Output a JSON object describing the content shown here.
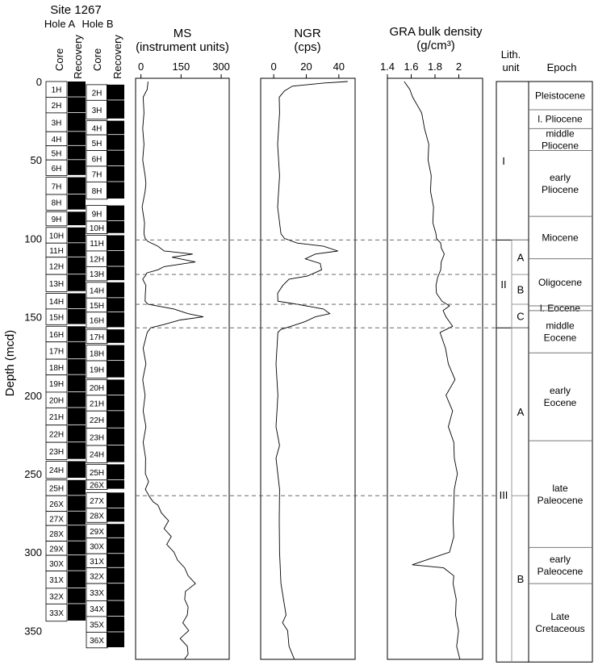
{
  "site_title": "Site 1267",
  "depth_axis": {
    "label": "Depth (mcd)",
    "range": [
      0,
      370
    ],
    "ticks": [
      0,
      50,
      100,
      150,
      200,
      250,
      300,
      350
    ]
  },
  "holes": [
    {
      "name": "Hole A",
      "core_label": "Core",
      "recovery_label": "Recovery",
      "cores": [
        {
          "id": "1H",
          "top": 0,
          "bottom": 10
        },
        {
          "id": "2H",
          "top": 10,
          "bottom": 20
        },
        {
          "id": "3H",
          "top": 20,
          "bottom": 32
        },
        {
          "id": "4H",
          "top": 32,
          "bottom": 41
        },
        {
          "id": "5H",
          "top": 41,
          "bottom": 50
        },
        {
          "id": "6H",
          "top": 50,
          "bottom": 60
        },
        {
          "id": "7H",
          "top": 61,
          "bottom": 72
        },
        {
          "id": "8H",
          "top": 72,
          "bottom": 82
        },
        {
          "id": "9H",
          "top": 83,
          "bottom": 92
        },
        {
          "id": "10H",
          "top": 93,
          "bottom": 103
        },
        {
          "id": "11H",
          "top": 103,
          "bottom": 112
        },
        {
          "id": "12H",
          "top": 112,
          "bottom": 123
        },
        {
          "id": "13H",
          "top": 123,
          "bottom": 134
        },
        {
          "id": "14H",
          "top": 135,
          "bottom": 145
        },
        {
          "id": "15H",
          "top": 145,
          "bottom": 155
        },
        {
          "id": "16H",
          "top": 156,
          "bottom": 166
        },
        {
          "id": "17H",
          "top": 166,
          "bottom": 177
        },
        {
          "id": "18H",
          "top": 177,
          "bottom": 187
        },
        {
          "id": "19H",
          "top": 187,
          "bottom": 198
        },
        {
          "id": "20H",
          "top": 198,
          "bottom": 208
        },
        {
          "id": "21H",
          "top": 208,
          "bottom": 219
        },
        {
          "id": "22H",
          "top": 219,
          "bottom": 230
        },
        {
          "id": "23H",
          "top": 230,
          "bottom": 241
        },
        {
          "id": "24H",
          "top": 242,
          "bottom": 253
        },
        {
          "id": "25H",
          "top": 254,
          "bottom": 264
        },
        {
          "id": "26X",
          "top": 264,
          "bottom": 274
        },
        {
          "id": "27X",
          "top": 274,
          "bottom": 283
        },
        {
          "id": "28X",
          "top": 283,
          "bottom": 293
        },
        {
          "id": "29X",
          "top": 293,
          "bottom": 302
        },
        {
          "id": "30X",
          "top": 302,
          "bottom": 312
        },
        {
          "id": "31X",
          "top": 312,
          "bottom": 323
        },
        {
          "id": "32X",
          "top": 323,
          "bottom": 333
        },
        {
          "id": "33X",
          "top": 333,
          "bottom": 344
        }
      ]
    },
    {
      "name": "Hole B",
      "core_label": "Core",
      "recovery_label": "Recovery",
      "cores": [
        {
          "id": "2H",
          "top": 2,
          "bottom": 12
        },
        {
          "id": "3H",
          "top": 12,
          "bottom": 24
        },
        {
          "id": "4H",
          "top": 25,
          "bottom": 34
        },
        {
          "id": "5H",
          "top": 34,
          "bottom": 44
        },
        {
          "id": "6H",
          "top": 44,
          "bottom": 54
        },
        {
          "id": "7H",
          "top": 54,
          "bottom": 64
        },
        {
          "id": "8H",
          "top": 64,
          "bottom": 75
        },
        {
          "id": "9H",
          "top": 79,
          "bottom": 89
        },
        {
          "id": "10H",
          "top": 89,
          "bottom": 97
        },
        {
          "id": "11H",
          "top": 98,
          "bottom": 108
        },
        {
          "id": "12H",
          "top": 108,
          "bottom": 118
        },
        {
          "id": "13H",
          "top": 118,
          "bottom": 127
        },
        {
          "id": "14H",
          "top": 128,
          "bottom": 138
        },
        {
          "id": "15H",
          "top": 138,
          "bottom": 147
        },
        {
          "id": "16H",
          "top": 147,
          "bottom": 157
        },
        {
          "id": "17H",
          "top": 158,
          "bottom": 167
        },
        {
          "id": "18H",
          "top": 168,
          "bottom": 178
        },
        {
          "id": "19H",
          "top": 178,
          "bottom": 189
        },
        {
          "id": "20H",
          "top": 190,
          "bottom": 200
        },
        {
          "id": "21H",
          "top": 200,
          "bottom": 210
        },
        {
          "id": "22H",
          "top": 210,
          "bottom": 221
        },
        {
          "id": "23H",
          "top": 221,
          "bottom": 232
        },
        {
          "id": "24H",
          "top": 232,
          "bottom": 243
        },
        {
          "id": "25H",
          "top": 244,
          "bottom": 254
        },
        {
          "id": "26X",
          "top": 254,
          "bottom": 260
        },
        {
          "id": "27X",
          "top": 262,
          "bottom": 272
        },
        {
          "id": "28X",
          "top": 272,
          "bottom": 281
        },
        {
          "id": "29X",
          "top": 282,
          "bottom": 291
        },
        {
          "id": "30X",
          "top": 291,
          "bottom": 301
        },
        {
          "id": "31X",
          "top": 301,
          "bottom": 310
        },
        {
          "id": "32X",
          "top": 310,
          "bottom": 320
        },
        {
          "id": "33X",
          "top": 320,
          "bottom": 331
        },
        {
          "id": "34X",
          "top": 331,
          "bottom": 341
        },
        {
          "id": "35X",
          "top": 341,
          "bottom": 351
        },
        {
          "id": "36X",
          "top": 351,
          "bottom": 361
        }
      ]
    }
  ],
  "chart_data": [
    {
      "type": "line",
      "title": "MS",
      "subtitle": "(instrument units)",
      "xlim": [
        -20,
        330
      ],
      "xticks": [
        0,
        150,
        300
      ],
      "depth": [
        0,
        5,
        10,
        20,
        30,
        40,
        50,
        60,
        65,
        70,
        80,
        90,
        97,
        100,
        102,
        105,
        108,
        110,
        112,
        115,
        118,
        120,
        122,
        124,
        126,
        130,
        135,
        140,
        142,
        145,
        148,
        150,
        152,
        155,
        157,
        160,
        170,
        180,
        190,
        200,
        210,
        220,
        230,
        240,
        250,
        255,
        260,
        265,
        268,
        270,
        275,
        280,
        285,
        290,
        295,
        300,
        305,
        310,
        315,
        320,
        325,
        330,
        335,
        340,
        345,
        350,
        355,
        360,
        365,
        368
      ],
      "value": [
        30,
        20,
        12,
        8,
        10,
        8,
        10,
        12,
        22,
        12,
        8,
        10,
        15,
        12,
        30,
        60,
        90,
        190,
        120,
        200,
        90,
        60,
        25,
        12,
        10,
        15,
        20,
        12,
        30,
        120,
        180,
        230,
        150,
        80,
        40,
        20,
        12,
        15,
        10,
        12,
        12,
        15,
        12,
        14,
        20,
        25,
        20,
        30,
        50,
        60,
        80,
        100,
        90,
        110,
        100,
        120,
        140,
        160,
        180,
        200,
        170,
        160,
        180,
        170,
        160,
        175,
        150,
        170,
        180,
        160
      ]
    },
    {
      "type": "line",
      "title": "NGR",
      "subtitle": "(cps)",
      "xlim": [
        -8,
        50
      ],
      "xticks": [
        0,
        20,
        40
      ],
      "depth": [
        0,
        1,
        3,
        6,
        10,
        20,
        40,
        60,
        80,
        90,
        97,
        100,
        103,
        105,
        108,
        110,
        113,
        116,
        120,
        124,
        126,
        130,
        135,
        140,
        142,
        145,
        148,
        150,
        153,
        156,
        158,
        160,
        180,
        200,
        220,
        232,
        240,
        260,
        280,
        300,
        320,
        340,
        345,
        350,
        360,
        368
      ],
      "value": [
        46,
        30,
        12,
        6,
        4,
        3,
        3,
        3,
        3,
        3,
        5,
        6,
        15,
        30,
        40,
        25,
        20,
        28,
        30,
        20,
        10,
        5,
        3,
        2,
        15,
        30,
        35,
        25,
        20,
        10,
        5,
        2,
        2,
        2,
        2,
        3,
        2,
        3,
        4,
        3,
        5,
        7,
        6,
        8,
        10,
        12
      ]
    },
    {
      "type": "line",
      "title": "GRA bulk density",
      "subtitle": "(g/cm³)",
      "xlim": [
        1.4,
        2.2
      ],
      "xticks": [
        1.4,
        1.6,
        1.8,
        2
      ],
      "depth": [
        0,
        5,
        10,
        20,
        30,
        40,
        50,
        60,
        70,
        80,
        90,
        97,
        100,
        103,
        106,
        110,
        115,
        120,
        125,
        130,
        135,
        140,
        143,
        146,
        150,
        156,
        160,
        170,
        180,
        190,
        200,
        210,
        220,
        230,
        240,
        250,
        260,
        270,
        280,
        290,
        300,
        308,
        310,
        315,
        320,
        330,
        340,
        350,
        360,
        368
      ],
      "value": [
        1.55,
        1.58,
        1.62,
        1.68,
        1.72,
        1.74,
        1.75,
        1.76,
        1.77,
        1.78,
        1.79,
        1.8,
        1.82,
        1.84,
        1.86,
        1.87,
        1.86,
        1.84,
        1.83,
        1.8,
        1.82,
        1.85,
        1.93,
        1.86,
        1.9,
        1.94,
        1.85,
        1.88,
        1.92,
        1.96,
        1.9,
        1.94,
        1.92,
        1.95,
        1.97,
        1.98,
        1.97,
        1.95,
        1.96,
        1.95,
        1.93,
        1.6,
        1.88,
        1.95,
        1.96,
        1.97,
        1.98,
        1.99,
        1.99,
        2.0
      ]
    }
  ],
  "dashed_boundaries": [
    101,
    123,
    142,
    157,
    264
  ],
  "lith": {
    "title": "Lith.",
    "title2": "unit",
    "units": [
      {
        "name": "I",
        "top": 0,
        "bottom": 101
      },
      {
        "name": "II",
        "top": 101,
        "bottom": 157
      },
      {
        "name": "III",
        "top": 157,
        "bottom": 370
      }
    ],
    "subunits": [
      {
        "name": "A",
        "top": 101,
        "bottom": 123
      },
      {
        "name": "B",
        "top": 123,
        "bottom": 142
      },
      {
        "name": "C",
        "top": 142,
        "bottom": 157
      },
      {
        "name": "A",
        "top": 157,
        "bottom": 264
      },
      {
        "name": "B",
        "top": 264,
        "bottom": 370
      }
    ]
  },
  "epochs": {
    "title": "Epoch",
    "items": [
      {
        "lines": [
          "Pleistocene"
        ],
        "top": 0,
        "bottom": 18
      },
      {
        "lines": [
          "l. Pliocene"
        ],
        "top": 18,
        "bottom": 30
      },
      {
        "lines": [
          "middle",
          "Pliocene"
        ],
        "top": 30,
        "bottom": 44
      },
      {
        "lines": [
          "early",
          "Pliocene"
        ],
        "top": 44,
        "bottom": 86
      },
      {
        "lines": [
          "Miocene"
        ],
        "top": 86,
        "bottom": 113
      },
      {
        "lines": [
          "Oligocene"
        ],
        "top": 113,
        "bottom": 143
      },
      {
        "lines": [
          "l. Eocene"
        ],
        "top": 143,
        "bottom": 146
      },
      {
        "lines": [
          "middle",
          "Eocene"
        ],
        "top": 146,
        "bottom": 173
      },
      {
        "lines": [
          "early",
          "Eocene"
        ],
        "top": 173,
        "bottom": 229
      },
      {
        "lines": [
          "late",
          "Paleocene"
        ],
        "top": 229,
        "bottom": 297
      },
      {
        "lines": [
          "early",
          "Paleocene"
        ],
        "top": 297,
        "bottom": 320
      },
      {
        "lines": [
          "Late",
          "Cretaceous"
        ],
        "top": 320,
        "bottom": 370
      }
    ]
  }
}
